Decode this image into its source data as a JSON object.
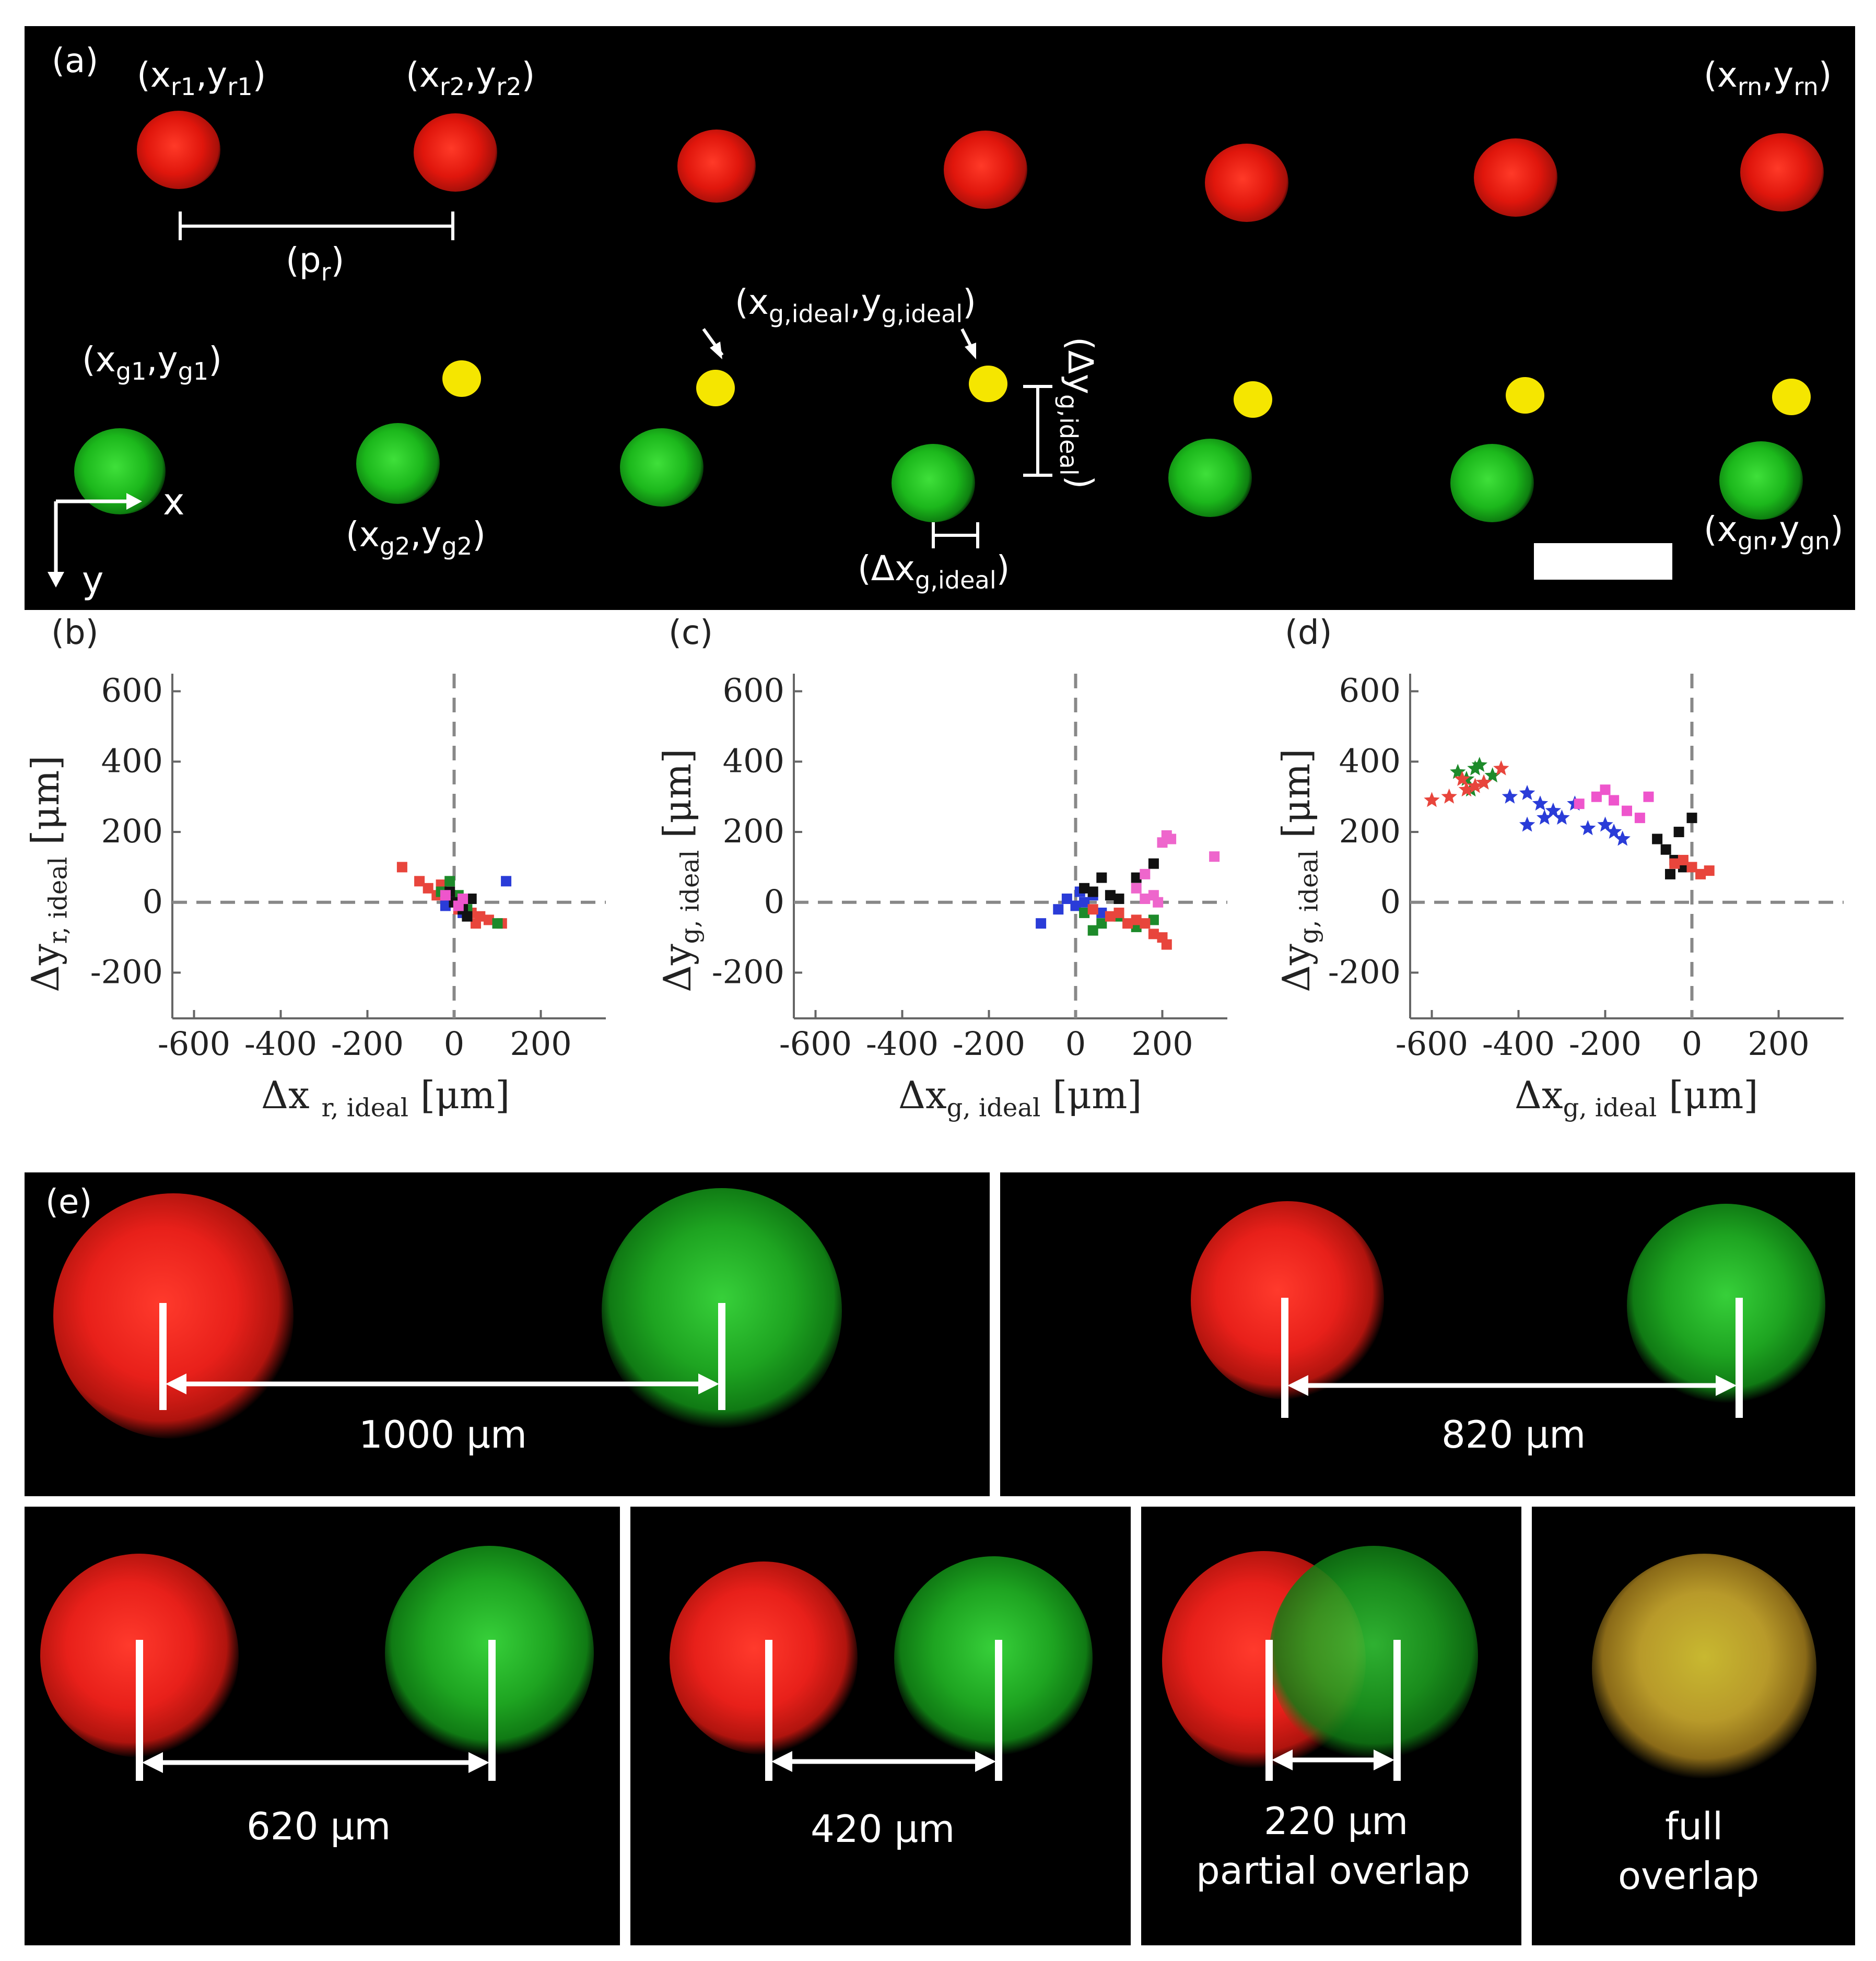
{
  "panel_a": {
    "tag": "(a)",
    "red_labels": {
      "r1": {
        "base": "(x",
        "sub1": "r1",
        "mid": ",y",
        "sub2": "r1",
        "end": ")"
      },
      "r2": {
        "base": "(x",
        "sub1": "r2",
        "mid": ",y",
        "sub2": "r2",
        "end": ")"
      },
      "rn": {
        "base": "(x",
        "sub1": "rn",
        "mid": ",y",
        "sub2": "rn",
        "end": ")"
      }
    },
    "pitch_label": {
      "base": "(p",
      "sub": "r",
      "end": ")"
    },
    "ideal_label": {
      "base": "(x",
      "sub1": "g,ideal",
      "mid": ",y",
      "sub2": "g,ideal",
      "end": ")"
    },
    "green_labels": {
      "g1": {
        "base": "(x",
        "sub1": "g1",
        "mid": ",y",
        "sub2": "g1",
        "end": ")"
      },
      "g2": {
        "base": "(x",
        "sub1": "g2",
        "mid": ",y",
        "sub2": "g2",
        "end": ")"
      },
      "gn": {
        "base": "(x",
        "sub1": "gn",
        "mid": ",y",
        "sub2": "gn",
        "end": ")"
      }
    },
    "dx_label": {
      "base": "(Δx",
      "sub": "g,ideal",
      "end": ")"
    },
    "dy_label": {
      "base": "(Δy",
      "sub": "g,ideal",
      "end": ")"
    },
    "axis_x": "x",
    "axis_y": "y"
  },
  "plots": {
    "b": {
      "tag": "(b)",
      "xlabel_main": "Δx ",
      "xlabel_sub": "r, ideal",
      "xlabel_unit": " [μm]",
      "ylabel_main": "Δy",
      "ylabel_sub": "r, ideal",
      "ylabel_unit": " [μm]"
    },
    "c": {
      "tag": "(c)",
      "xlabel_main": "Δx",
      "xlabel_sub": "g, ideal",
      "xlabel_unit": " [μm]",
      "ylabel_main": "Δy",
      "ylabel_sub": "g, ideal",
      "ylabel_unit": " [μm]"
    },
    "d": {
      "tag": "(d)",
      "xlabel_main": "Δx",
      "xlabel_sub": "g, ideal",
      "xlabel_unit": " [μm]",
      "ylabel_main": "Δy",
      "ylabel_sub": "g, ideal",
      "ylabel_unit": " [μm]"
    }
  },
  "chart_data": [
    {
      "panel": "b",
      "type": "scatter",
      "xlim": [
        -650,
        350
      ],
      "ylim": [
        -330,
        650
      ],
      "xticks": [
        -600,
        -400,
        -200,
        0,
        200
      ],
      "yticks": [
        -200,
        0,
        200,
        400,
        600
      ],
      "xtick_labels": [
        "-600",
        "-400",
        "-200",
        "0",
        "200"
      ],
      "ytick_labels": [
        "-200",
        "0",
        "200",
        "400",
        "600"
      ],
      "reference_lines": {
        "x": 0,
        "y": 0
      },
      "series": [
        {
          "color": "#e8453c",
          "marker": "square",
          "x": [
            -120,
            -80,
            -60,
            -40,
            -20,
            0,
            20,
            40,
            60,
            80,
            110,
            -30,
            10,
            50
          ],
          "y": [
            100,
            60,
            40,
            20,
            10,
            0,
            -10,
            -30,
            -40,
            -50,
            -60,
            50,
            -20,
            -60
          ]
        },
        {
          "color": "#2a3cd8",
          "marker": "square",
          "x": [
            -20,
            0,
            20,
            120,
            -10
          ],
          "y": [
            -10,
            10,
            -30,
            60,
            20
          ]
        },
        {
          "color": "#1d8a2a",
          "marker": "square",
          "x": [
            -10,
            10,
            30,
            100,
            -30
          ],
          "y": [
            60,
            20,
            -20,
            -60,
            30
          ]
        },
        {
          "color": "#111111",
          "marker": "square",
          "x": [
            0,
            20,
            40,
            -10,
            30
          ],
          "y": [
            0,
            -20,
            10,
            30,
            -40
          ]
        },
        {
          "color": "#ee55cc",
          "marker": "square",
          "x": [
            -20,
            10,
            20
          ],
          "y": [
            20,
            -10,
            10
          ]
        }
      ]
    },
    {
      "panel": "c",
      "type": "scatter",
      "xlim": [
        -650,
        350
      ],
      "ylim": [
        -330,
        650
      ],
      "xticks": [
        -600,
        -400,
        -200,
        0,
        200
      ],
      "yticks": [
        -200,
        0,
        200,
        400,
        600
      ],
      "xtick_labels": [
        "-600",
        "-400",
        "-200",
        "0",
        "200"
      ],
      "ytick_labels": [
        "-200",
        "0",
        "200",
        "400",
        "600"
      ],
      "reference_lines": {
        "x": 0,
        "y": 0
      },
      "series": [
        {
          "color": "#2a3cd8",
          "marker": "square",
          "x": [
            -80,
            -40,
            -20,
            0,
            20,
            40,
            60,
            10
          ],
          "y": [
            -60,
            -20,
            10,
            -10,
            0,
            20,
            -30,
            30
          ]
        },
        {
          "color": "#111111",
          "marker": "square",
          "x": [
            20,
            40,
            60,
            80,
            100,
            140,
            180
          ],
          "y": [
            40,
            30,
            70,
            20,
            10,
            70,
            110
          ]
        },
        {
          "color": "#1d8a2a",
          "marker": "square",
          "x": [
            20,
            60,
            100,
            140,
            180,
            40
          ],
          "y": [
            -30,
            -60,
            -40,
            -70,
            -50,
            -80
          ]
        },
        {
          "color": "#e8453c",
          "marker": "square",
          "x": [
            40,
            80,
            120,
            160,
            180,
            200,
            210,
            100,
            140
          ],
          "y": [
            -20,
            -40,
            -60,
            -60,
            -90,
            -100,
            -120,
            -30,
            -50
          ]
        },
        {
          "color": "#ee66cc",
          "marker": "square",
          "x": [
            140,
            160,
            180,
            200,
            210,
            220,
            320,
            160,
            190
          ],
          "y": [
            40,
            10,
            20,
            170,
            190,
            180,
            130,
            80,
            0
          ]
        }
      ]
    },
    {
      "panel": "d",
      "type": "scatter",
      "xlim": [
        -650,
        350
      ],
      "ylim": [
        -330,
        650
      ],
      "xticks": [
        -600,
        -400,
        -200,
        0,
        200
      ],
      "yticks": [
        -200,
        0,
        200,
        400,
        600
      ],
      "xtick_labels": [
        "-600",
        "-400",
        "-200",
        "0",
        "200"
      ],
      "ytick_labels": [
        "-200",
        "0",
        "200",
        "400",
        "600"
      ],
      "reference_lines": {
        "x": 0,
        "y": 0
      },
      "series": [
        {
          "color": "#1d8a2a",
          "marker": "star",
          "x": [
            -540,
            -520,
            -500,
            -480,
            -460,
            -510,
            -490
          ],
          "y": [
            370,
            350,
            380,
            340,
            360,
            320,
            390
          ]
        },
        {
          "color": "#e8453c",
          "marker": "star",
          "x": [
            -600,
            -560,
            -520,
            -500,
            -480,
            -440,
            -530
          ],
          "y": [
            290,
            300,
            320,
            330,
            340,
            380,
            350
          ]
        },
        {
          "color": "#2a3cd8",
          "marker": "star",
          "x": [
            -420,
            -380,
            -350,
            -320,
            -300,
            -270,
            -240,
            -200,
            -180,
            -160,
            -380,
            -340
          ],
          "y": [
            300,
            310,
            280,
            260,
            240,
            280,
            210,
            220,
            200,
            180,
            220,
            240
          ]
        },
        {
          "color": "#ee55cc",
          "marker": "square",
          "x": [
            -260,
            -220,
            -180,
            -150,
            -120,
            -100,
            -200
          ],
          "y": [
            280,
            300,
            290,
            260,
            240,
            300,
            320
          ]
        },
        {
          "color": "#111111",
          "marker": "square",
          "x": [
            -80,
            -60,
            -40,
            -20,
            0,
            -50,
            -30
          ],
          "y": [
            180,
            150,
            120,
            100,
            240,
            80,
            200
          ]
        },
        {
          "color": "#e8453c",
          "marker": "square",
          "x": [
            -20,
            0,
            20,
            40,
            -40
          ],
          "y": [
            120,
            100,
            80,
            90,
            110
          ]
        }
      ]
    }
  ],
  "panel_e": {
    "tag": "(e)",
    "distances": [
      {
        "value": "1000 μm"
      },
      {
        "value": "820 μm"
      },
      {
        "value": "620 μm"
      },
      {
        "value": "420 μm"
      },
      {
        "value": "220 μm",
        "note": "partial overlap"
      },
      {
        "value": "full",
        "note": "overlap"
      }
    ]
  }
}
